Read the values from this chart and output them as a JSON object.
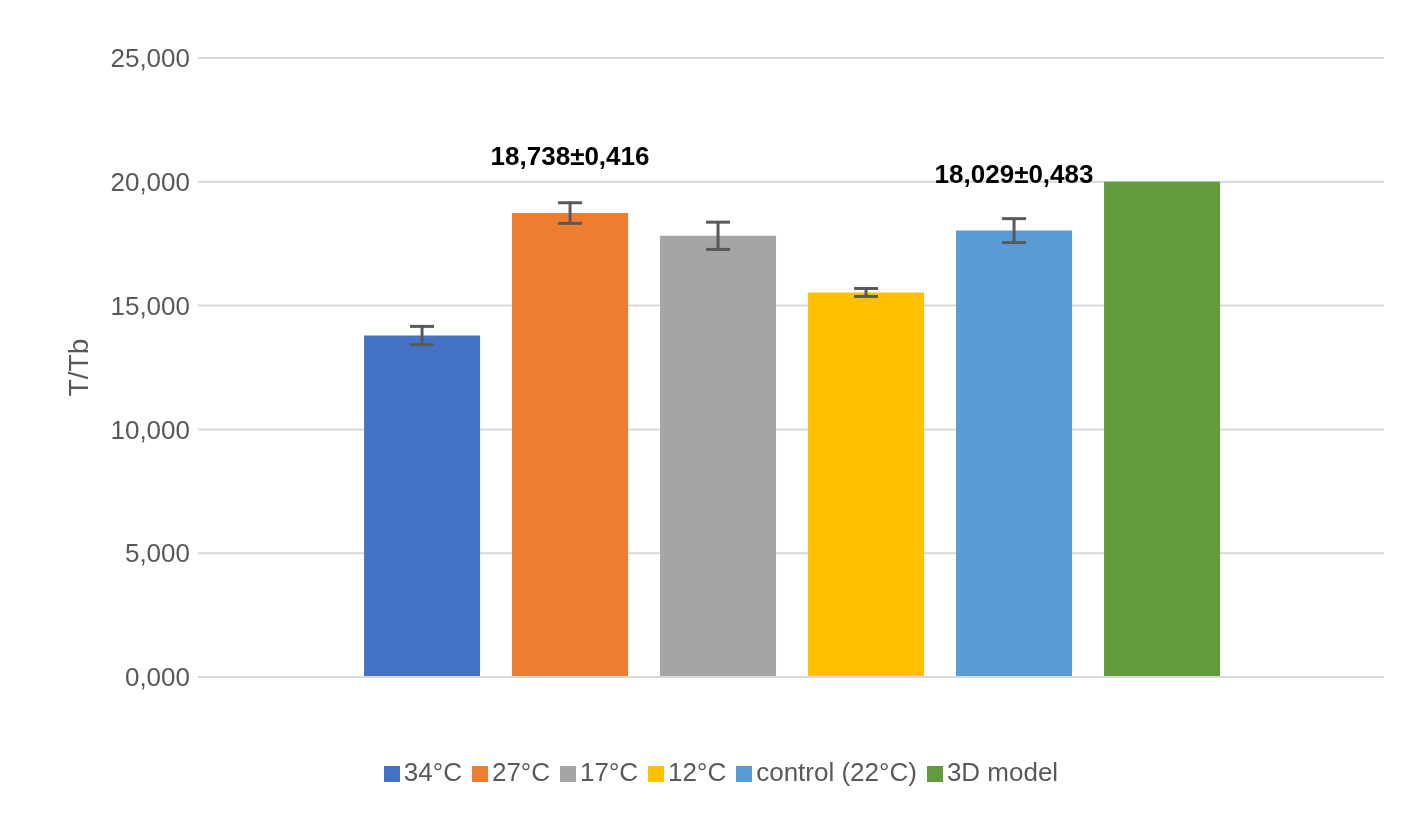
{
  "chart_data": {
    "type": "bar",
    "ylabel": "T/Tb",
    "categories": [
      null
    ],
    "series": [
      {
        "name": "34°C",
        "color": "#4472c4",
        "values": [
          13.79
        ],
        "errors": [
          0.37
        ]
      },
      {
        "name": "27°C",
        "color": "#ed7d31",
        "values": [
          18.738
        ],
        "errors": [
          0.416
        ],
        "value_labels": [
          "18,738±0,416"
        ]
      },
      {
        "name": "17°C",
        "color": "#a5a5a5",
        "values": [
          17.82
        ],
        "errors": [
          0.55
        ]
      },
      {
        "name": "12°C",
        "color": "#ffc000",
        "values": [
          15.53
        ],
        "errors": [
          0.16
        ]
      },
      {
        "name": "control (22°C)",
        "color": "#5b9bd5",
        "values": [
          18.029
        ],
        "errors": [
          0.483
        ],
        "value_labels": [
          "18,029±0,483"
        ]
      },
      {
        "name": "3D model",
        "color": "#629b3d",
        "values": [
          20.0
        ],
        "errors": [
          0
        ]
      }
    ],
    "ylim": [
      0,
      25
    ],
    "yticks": [
      {
        "value": 0,
        "label": "0,000"
      },
      {
        "value": 5,
        "label": "5,000"
      },
      {
        "value": 10,
        "label": "10,000"
      },
      {
        "value": 15,
        "label": "15,000"
      },
      {
        "value": 20,
        "label": "20,000"
      },
      {
        "value": 25,
        "label": "25,000"
      }
    ],
    "grid": "y",
    "legend": "bottom"
  }
}
